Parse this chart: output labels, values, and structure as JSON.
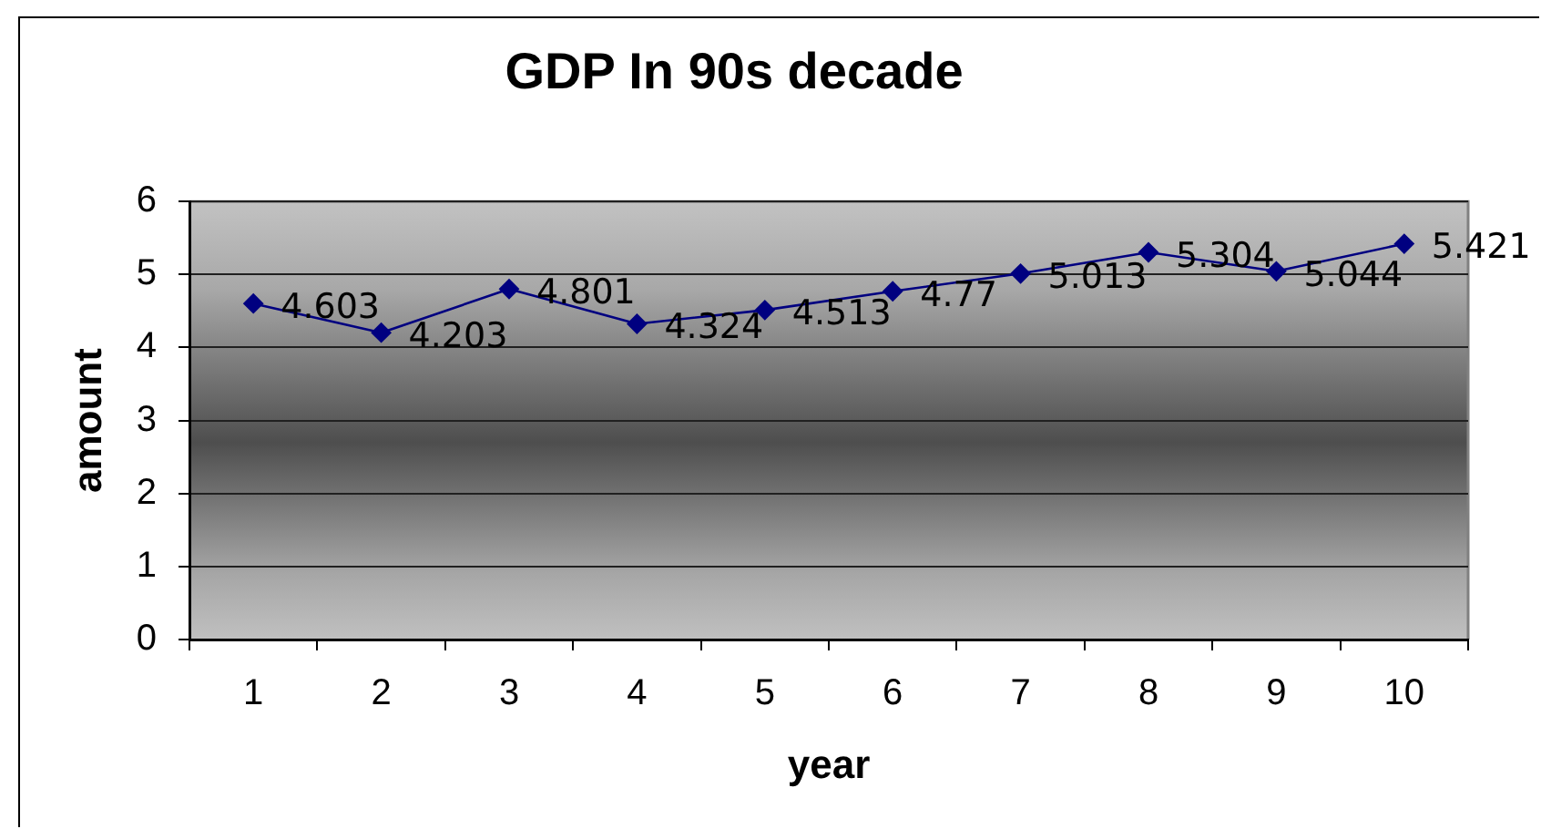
{
  "chart_data": {
    "type": "line",
    "title": "GDP In 90s decade",
    "xlabel": "year",
    "ylabel": "amount",
    "categories": [
      "1",
      "2",
      "3",
      "4",
      "5",
      "6",
      "7",
      "8",
      "9",
      "10"
    ],
    "series": [
      {
        "color": "#000080",
        "values": [
          4.603,
          4.203,
          4.801,
          4.324,
          4.513,
          4.77,
          5.013,
          5.304,
          5.044,
          5.421
        ]
      }
    ],
    "ylim": [
      0,
      6
    ],
    "yticks": [
      0,
      1,
      2,
      3,
      4,
      5,
      6
    ],
    "grid": "y",
    "legend": false,
    "marker": "diamond",
    "data_labels": true
  }
}
